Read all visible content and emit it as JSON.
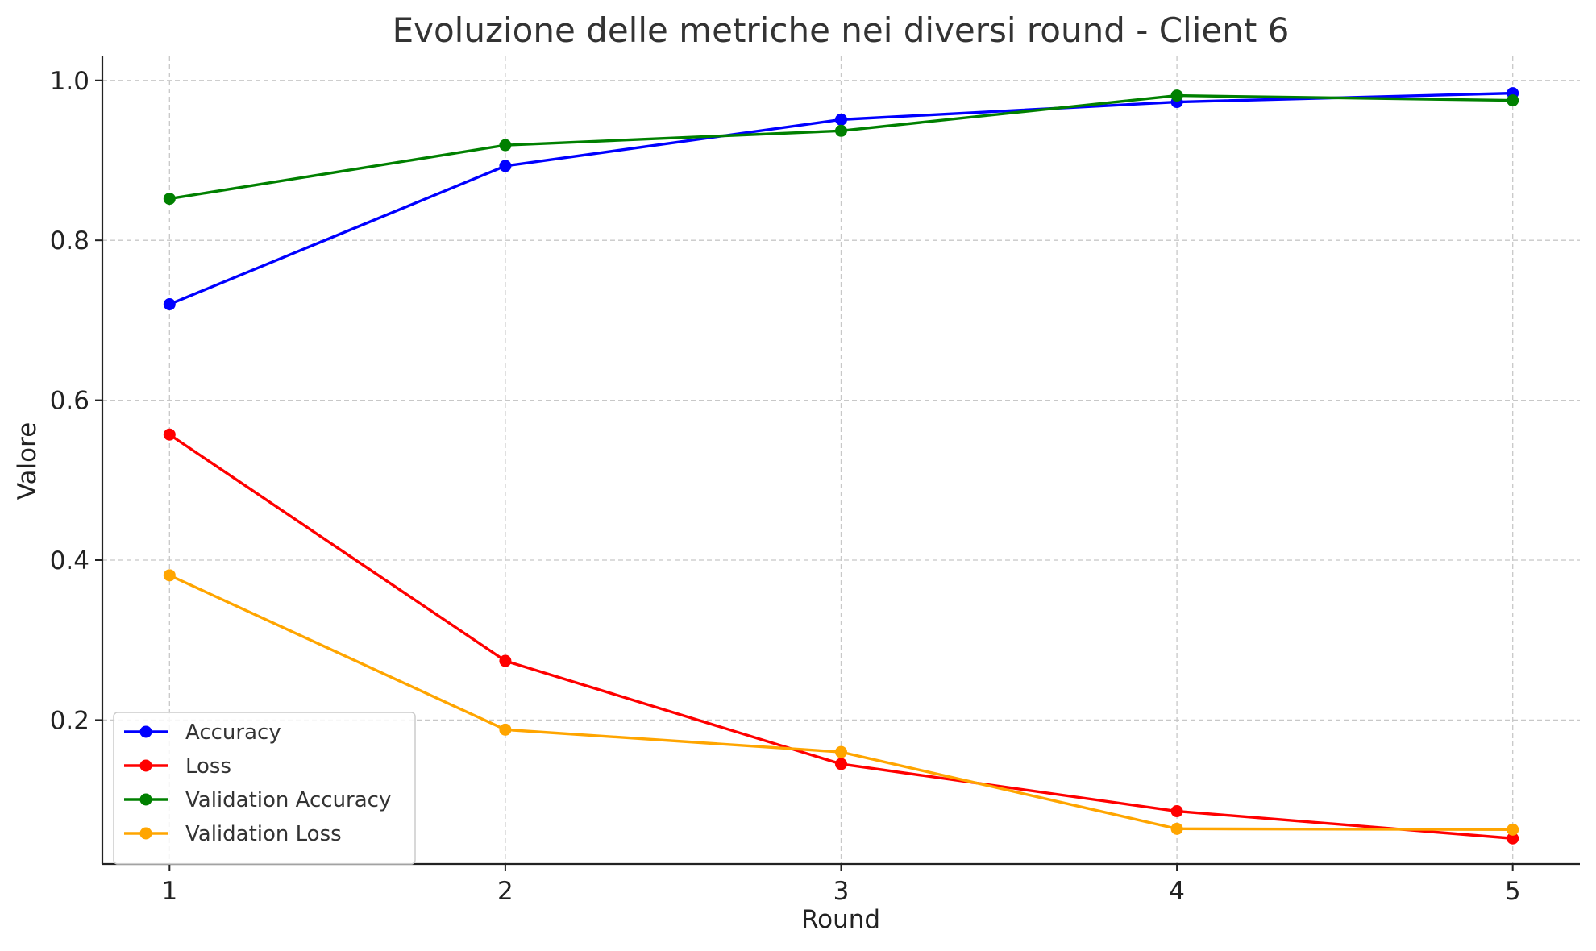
{
  "chart_data": {
    "type": "line",
    "title": "Evoluzione delle metriche nei diversi round - Client 6",
    "xlabel": "Round",
    "ylabel": "Valore",
    "x": [
      1,
      2,
      3,
      4,
      5
    ],
    "xticks": [
      "1",
      "2",
      "3",
      "4",
      "5"
    ],
    "yticks": [
      "0.2",
      "0.4",
      "0.6",
      "0.8",
      "1.0"
    ],
    "xlim": [
      0.8,
      5.2
    ],
    "ylim": [
      0.02,
      1.03
    ],
    "grid": true,
    "legend_position": "lower-left",
    "series": [
      {
        "name": "Accuracy",
        "color": "#0000ff",
        "values": [
          0.72,
          0.893,
          0.951,
          0.973,
          0.984
        ]
      },
      {
        "name": "Loss",
        "color": "#ff0000",
        "values": [
          0.557,
          0.274,
          0.145,
          0.086,
          0.052
        ]
      },
      {
        "name": "Validation Accuracy",
        "color": "#008000",
        "values": [
          0.852,
          0.919,
          0.937,
          0.981,
          0.975
        ]
      },
      {
        "name": "Validation Loss",
        "color": "#ffa500",
        "values": [
          0.381,
          0.188,
          0.16,
          0.064,
          0.063
        ]
      }
    ]
  }
}
